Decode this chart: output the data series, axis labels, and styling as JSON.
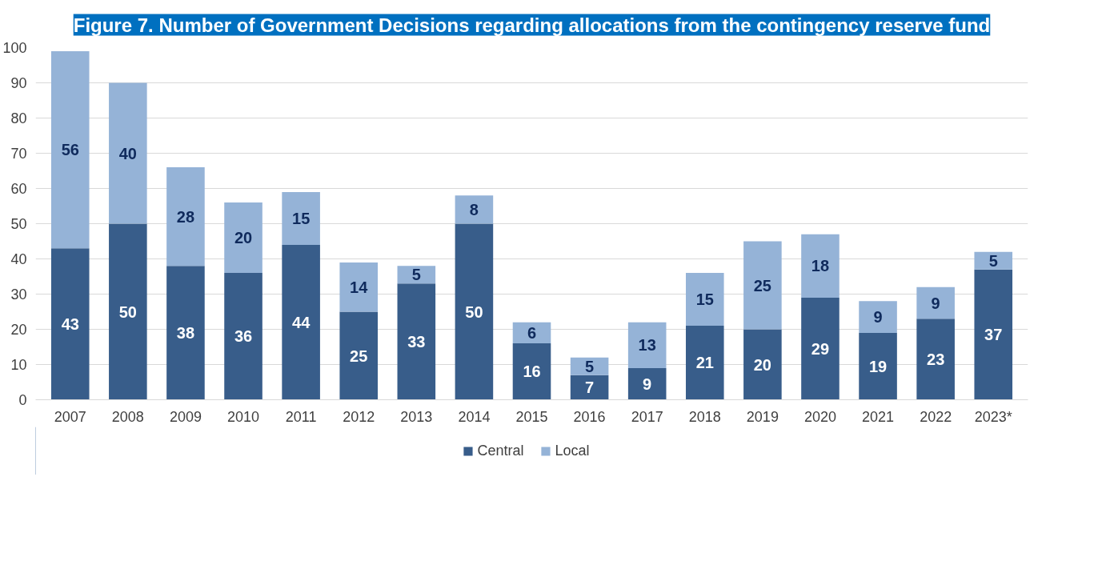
{
  "chart_data": {
    "type": "bar",
    "title": "Figure 7. Number of Government Decisions regarding allocations from the contingency reserve fund",
    "categories": [
      "2007",
      "2008",
      "2009",
      "2010",
      "2011",
      "2012",
      "2013",
      "2014",
      "2015",
      "2016",
      "2017",
      "2018",
      "2019",
      "2020",
      "2021",
      "2022",
      "2023*"
    ],
    "series": [
      {
        "name": "Central",
        "color": "#385d8a",
        "values": [
          43,
          50,
          38,
          36,
          44,
          25,
          33,
          50,
          16,
          7,
          9,
          21,
          20,
          29,
          19,
          23,
          37
        ]
      },
      {
        "name": "Local",
        "color": "#95b3d7",
        "values": [
          56,
          40,
          28,
          20,
          15,
          14,
          5,
          8,
          6,
          5,
          13,
          15,
          25,
          18,
          9,
          9,
          5
        ]
      }
    ],
    "stacked": true,
    "ylim": [
      0,
      100
    ],
    "yticks": [
      0,
      10,
      20,
      30,
      40,
      50,
      60,
      70,
      80,
      90,
      100
    ],
    "grid": "y",
    "legend": "bottom",
    "data_labels": true
  }
}
